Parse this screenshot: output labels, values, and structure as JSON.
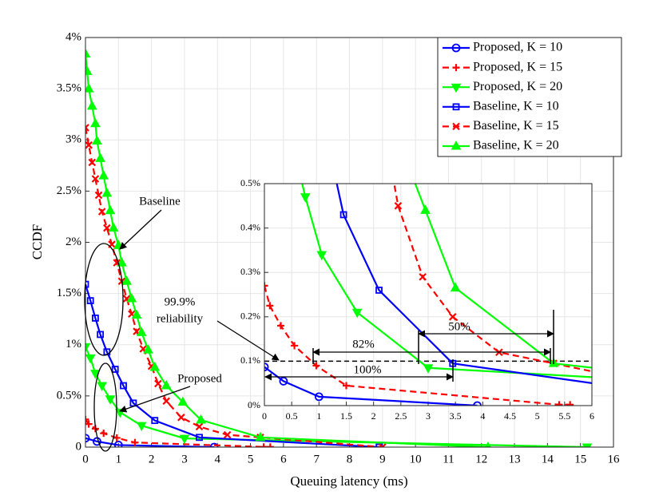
{
  "chart_data": {
    "type": "line",
    "xlabel": "Queuing latency (ms)",
    "ylabel": "CCDF",
    "xlim": [
      0,
      16
    ],
    "xticks": [
      0,
      1,
      2,
      3,
      4,
      5,
      6,
      7,
      8,
      9,
      10,
      11,
      12,
      13,
      14,
      15,
      16
    ],
    "ylim": [
      0,
      4
    ],
    "yticks": [
      0,
      {
        "value": 0.5,
        "label": "0.5%"
      },
      {
        "value": 1,
        "label": "1%"
      },
      {
        "value": 1.5,
        "label": "1.5%"
      },
      {
        "value": 2,
        "label": "2%"
      },
      {
        "value": 2.5,
        "label": "2.5%"
      },
      {
        "value": 3,
        "label": "3%"
      },
      {
        "value": 3.5,
        "label": "3.5%"
      },
      {
        "value": 4,
        "label": "4%"
      }
    ],
    "grid": true,
    "legend": "upper right",
    "series": [
      {
        "name": "Proposed, K = 10",
        "color": "#0000ff",
        "marker": "circle",
        "dash": false,
        "x": [
          0,
          0.35,
          1,
          3.9
        ],
        "values": [
          0.087,
          0.055,
          0.02,
          0.0
        ]
      },
      {
        "name": "Proposed, K = 15",
        "color": "#ff0000",
        "marker": "plus",
        "dash": true,
        "x": [
          0,
          0.1,
          0.3,
          0.55,
          0.95,
          1.5,
          5.4,
          5.6
        ],
        "values": [
          0.27,
          0.225,
          0.18,
          0.135,
          0.09,
          0.045,
          0.002,
          0.002
        ]
      },
      {
        "name": "Proposed, K = 20",
        "color": "#00ff00",
        "marker": "down",
        "dash": false,
        "x": [
          0,
          0.15,
          0.3,
          0.5,
          0.75,
          1.05,
          1.7,
          3,
          15.2
        ],
        "values": [
          0.98,
          0.87,
          0.72,
          0.6,
          0.47,
          0.34,
          0.21,
          0.085,
          0.0
        ]
      },
      {
        "name": "Baseline, K = 10",
        "color": "#0000ff",
        "marker": "square",
        "dash": false,
        "x": [
          0,
          0.15,
          0.3,
          0.45,
          0.65,
          0.9,
          1.15,
          1.45,
          2.1,
          3.45,
          8.9
        ],
        "values": [
          1.59,
          1.43,
          1.26,
          1.1,
          0.93,
          0.76,
          0.6,
          0.43,
          0.26,
          0.095,
          0.0
        ]
      },
      {
        "name": "Baseline, K = 15",
        "color": "#ff0000",
        "marker": "x",
        "dash": true,
        "x": [
          0,
          0.1,
          0.2,
          0.3,
          0.4,
          0.5,
          0.65,
          0.8,
          0.95,
          1.1,
          1.25,
          1.4,
          1.55,
          1.75,
          2,
          2.2,
          2.45,
          2.9,
          3.45,
          4.3,
          5.3,
          9
        ],
        "values": [
          3.12,
          2.95,
          2.78,
          2.62,
          2.46,
          2.3,
          2.14,
          1.98,
          1.8,
          1.62,
          1.45,
          1.3,
          1.13,
          0.96,
          0.79,
          0.62,
          0.45,
          0.29,
          0.2,
          0.12,
          0.095,
          0.0
        ]
      },
      {
        "name": "Baseline, K = 20",
        "color": "#00ff00",
        "marker": "up",
        "dash": false,
        "x": [
          0,
          0.05,
          0.1,
          0.2,
          0.3,
          0.35,
          0.45,
          0.55,
          0.65,
          0.75,
          0.85,
          1,
          1.1,
          1.25,
          1.4,
          1.55,
          1.7,
          1.9,
          2.1,
          2.45,
          2.95,
          3.5,
          5.3,
          12.2
        ],
        "values": [
          3.84,
          3.67,
          3.5,
          3.33,
          3.16,
          2.99,
          2.82,
          2.65,
          2.48,
          2.31,
          2.14,
          1.97,
          1.8,
          1.62,
          1.45,
          1.29,
          1.12,
          0.95,
          0.78,
          0.6,
          0.44,
          0.265,
          0.095,
          0.0
        ]
      }
    ],
    "annotations": [
      "Baseline",
      "Proposed",
      "99.9%",
      "reliability",
      "82%",
      "100%",
      "50%"
    ],
    "inset": {
      "xlim": [
        0,
        6
      ],
      "xticks": [
        0,
        0.5,
        1,
        1.5,
        2,
        2.5,
        3,
        3.5,
        4,
        4.5,
        5,
        5.5,
        6
      ],
      "ylim": [
        0,
        0.5
      ],
      "yticks": [
        {
          "value": 0,
          "label": "0%"
        },
        {
          "value": 0.1,
          "label": "0.1%"
        },
        {
          "value": 0.2,
          "label": "0.2%"
        },
        {
          "value": 0.3,
          "label": "0.3%"
        },
        {
          "value": 0.4,
          "label": "0.4%"
        },
        {
          "value": 0.5,
          "label": "0.5%"
        }
      ],
      "grid": true,
      "reference_line": 0.1
    }
  }
}
